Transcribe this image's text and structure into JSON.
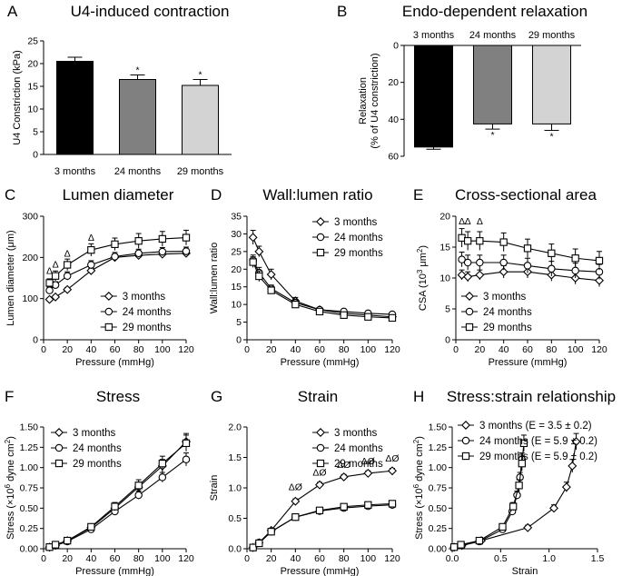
{
  "chart_data": [
    {
      "panel": "A",
      "type": "bar",
      "title": "U4-induced contraction",
      "categories": [
        "3 months",
        "24 months",
        "29 months"
      ],
      "values": [
        20.5,
        16.5,
        15.2
      ],
      "errors": [
        0.9,
        1.0,
        1.3
      ],
      "colors": [
        "#000000",
        "#808080",
        "#d3d3d3"
      ],
      "significance": [
        "",
        "*",
        "*"
      ],
      "ylabel": "U4 Constriction (kPa)",
      "ylim": [
        0,
        25
      ],
      "yticks": [
        0,
        5,
        10,
        15,
        20,
        25
      ]
    },
    {
      "panel": "B",
      "type": "bar",
      "title": "Endo-dependent relaxation",
      "categories": [
        "3 months",
        "24 months",
        "29 months"
      ],
      "values": [
        55,
        42.5,
        42.5
      ],
      "errors": [
        1.2,
        2.8,
        3.5
      ],
      "colors": [
        "#000000",
        "#808080",
        "#d3d3d3"
      ],
      "significance": [
        "",
        "*",
        "*"
      ],
      "ylabel": "Relaxation",
      "ylabel2": "(% of U4 constriction)",
      "ylim": [
        0,
        60
      ],
      "yticks": [
        0,
        20,
        40,
        60
      ]
    },
    {
      "panel": "C",
      "type": "line",
      "title": "Lumen diameter",
      "x": [
        5,
        10,
        20,
        40,
        60,
        80,
        100,
        120
      ],
      "series": [
        {
          "name": "3 months",
          "marker": "diamond",
          "values": [
            98,
            104,
            122,
            168,
            200,
            205,
            208,
            210
          ],
          "errors": [
            4,
            4,
            5,
            6,
            8,
            8,
            8,
            8
          ]
        },
        {
          "name": "24 months",
          "marker": "circle",
          "values": [
            120,
            133,
            155,
            182,
            202,
            210,
            214,
            215
          ],
          "errors": [
            8,
            8,
            10,
            10,
            10,
            10,
            10,
            10
          ]
        },
        {
          "name": "29 months",
          "marker": "square",
          "values": [
            138,
            155,
            182,
            218,
            232,
            240,
            245,
            248
          ],
          "errors": [
            10,
            12,
            14,
            15,
            15,
            18,
            18,
            18
          ]
        }
      ],
      "annotations": [
        {
          "x": 5,
          "y": 160,
          "text": "Δ"
        },
        {
          "x": 10,
          "y": 175,
          "text": "Δ"
        },
        {
          "x": 20,
          "y": 202,
          "text": "Δ"
        },
        {
          "x": 40,
          "y": 240,
          "text": "Δ"
        }
      ],
      "xlabel": "Pressure (mmHg)",
      "ylabel": "Lumen diameter (μm)",
      "xlim": [
        0,
        120
      ],
      "ylim": [
        0,
        300
      ],
      "xticks": [
        0,
        20,
        40,
        60,
        80,
        100,
        120
      ],
      "yticks": [
        0,
        100,
        200,
        300
      ],
      "legend": "bottom-right"
    },
    {
      "panel": "D",
      "type": "line",
      "title": "Wall:lumen ratio",
      "x": [
        5,
        10,
        20,
        40,
        60,
        80,
        100,
        120
      ],
      "series": [
        {
          "name": "3 months",
          "marker": "diamond",
          "values": [
            29,
            25,
            18.5,
            11,
            8.5,
            7.5,
            7,
            6.5
          ],
          "errors": [
            2,
            1.5,
            1.5,
            1,
            0.5,
            0.5,
            0.5,
            0.5
          ]
        },
        {
          "name": "24 months",
          "marker": "circle",
          "values": [
            22.5,
            19,
            14.5,
            10.5,
            8.5,
            8,
            7.5,
            7.2
          ],
          "errors": [
            1.5,
            1.5,
            1,
            1,
            0.5,
            0.5,
            0.5,
            0.5
          ]
        },
        {
          "name": "29 months",
          "marker": "square",
          "values": [
            22,
            18,
            14,
            10,
            8,
            7,
            6.5,
            6.2
          ],
          "errors": [
            1.5,
            1.5,
            1,
            1,
            0.5,
            0.5,
            0.5,
            0.5
          ]
        }
      ],
      "xlabel": "Pressure (mmHg)",
      "ylabel": "Wall:lumen ratio",
      "xlim": [
        0,
        120
      ],
      "ylim": [
        0,
        35
      ],
      "xticks": [
        0,
        20,
        40,
        60,
        80,
        100,
        120
      ],
      "yticks": [
        0,
        5,
        10,
        15,
        20,
        25,
        30,
        35
      ],
      "legend": "top-right"
    },
    {
      "panel": "E",
      "type": "line",
      "title": "Cross-sectional area",
      "x": [
        5,
        10,
        20,
        40,
        60,
        80,
        100,
        120
      ],
      "series": [
        {
          "name": "3 months",
          "marker": "diamond",
          "values": [
            10.5,
            10.2,
            10.5,
            11,
            11,
            10.5,
            10,
            9.6
          ],
          "errors": [
            0.8,
            0.8,
            0.8,
            1,
            1,
            1,
            1,
            1
          ]
        },
        {
          "name": "24 months",
          "marker": "circle",
          "values": [
            13,
            12.5,
            12.5,
            12.5,
            12,
            11.5,
            11.2,
            11
          ],
          "errors": [
            1.2,
            1.2,
            1.2,
            1.2,
            1.2,
            1.2,
            1.2,
            1.2
          ]
        },
        {
          "name": "29 months",
          "marker": "square",
          "values": [
            16.5,
            16,
            16,
            15.8,
            14.8,
            14,
            13.2,
            12.8
          ],
          "errors": [
            1.5,
            1.5,
            1.5,
            1.5,
            1.5,
            1.5,
            1.5,
            1.5
          ]
        }
      ],
      "annotations": [
        {
          "x": 5,
          "y": 18.7,
          "text": "Δ"
        },
        {
          "x": 10,
          "y": 18.7,
          "text": "Δ"
        },
        {
          "x": 20,
          "y": 18.7,
          "text": "Δ"
        }
      ],
      "xlabel": "Pressure (mmHg)",
      "ylabel": "CSA (10",
      "ylabel_sup": "3",
      "ylabel_unit": " μm",
      "ylabel_sup2": "2",
      "ylabel_end": ")",
      "xlim": [
        0,
        120
      ],
      "ylim": [
        0,
        20
      ],
      "xticks": [
        0,
        20,
        40,
        60,
        80,
        100,
        120
      ],
      "yticks": [
        0,
        5,
        10,
        15,
        20
      ],
      "legend": "bottom-left"
    },
    {
      "panel": "F",
      "type": "line",
      "title": "Stress",
      "x": [
        5,
        10,
        20,
        40,
        60,
        80,
        100,
        120
      ],
      "series": [
        {
          "name": "3 months",
          "marker": "diamond",
          "values": [
            0.02,
            0.04,
            0.1,
            0.26,
            0.5,
            0.76,
            1.02,
            1.32
          ],
          "errors": [
            0.01,
            0.01,
            0.02,
            0.03,
            0.04,
            0.06,
            0.08,
            0.1
          ]
        },
        {
          "name": "24 months",
          "marker": "circle",
          "values": [
            0.02,
            0.04,
            0.09,
            0.24,
            0.46,
            0.66,
            0.88,
            1.1
          ],
          "errors": [
            0.01,
            0.01,
            0.02,
            0.03,
            0.04,
            0.05,
            0.06,
            0.08
          ]
        },
        {
          "name": "29 months",
          "marker": "square",
          "values": [
            0.02,
            0.05,
            0.1,
            0.27,
            0.52,
            0.78,
            1.05,
            1.3
          ],
          "errors": [
            0.01,
            0.01,
            0.02,
            0.03,
            0.05,
            0.07,
            0.09,
            0.1
          ]
        }
      ],
      "xlabel": "Pressure (mmHg)",
      "ylabel": "Stress (×10",
      "ylabel_sup": "6",
      "ylabel_unit": " dyne cm",
      "ylabel_sup2": "2",
      "ylabel_end": ")",
      "xlim": [
        0,
        120
      ],
      "ylim": [
        0,
        1.5
      ],
      "xticks": [
        0,
        20,
        40,
        60,
        80,
        100,
        120
      ],
      "yticks": [
        0,
        0.25,
        0.5,
        0.75,
        1.0,
        1.25,
        1.5
      ],
      "ytick_labels": [
        "0.00",
        "0.25",
        "0.50",
        "0.75",
        "1.00",
        "1.25",
        "1.50"
      ],
      "legend": "top-left"
    },
    {
      "panel": "G",
      "type": "line",
      "title": "Strain",
      "x": [
        5,
        10,
        20,
        40,
        60,
        80,
        100,
        120
      ],
      "series": [
        {
          "name": "3 months",
          "marker": "diamond",
          "values": [
            0.02,
            0.1,
            0.3,
            0.78,
            1.05,
            1.18,
            1.24,
            1.28
          ],
          "errors": [
            0.01,
            0.02,
            0.03,
            0.04,
            0.04,
            0.04,
            0.04,
            0.04
          ]
        },
        {
          "name": "24 months",
          "marker": "circle",
          "values": [
            0.02,
            0.1,
            0.28,
            0.52,
            0.62,
            0.67,
            0.7,
            0.72
          ],
          "errors": [
            0.01,
            0.02,
            0.03,
            0.03,
            0.03,
            0.03,
            0.03,
            0.03
          ]
        },
        {
          "name": "29 months",
          "marker": "square",
          "values": [
            0.02,
            0.09,
            0.28,
            0.52,
            0.63,
            0.69,
            0.72,
            0.74
          ],
          "errors": [
            0.01,
            0.02,
            0.03,
            0.03,
            0.03,
            0.03,
            0.03,
            0.03
          ]
        }
      ],
      "annotations": [
        {
          "x": 40,
          "y": 0.96,
          "text": "ΔØ"
        },
        {
          "x": 60,
          "y": 1.2,
          "text": "ΔØ"
        },
        {
          "x": 80,
          "y": 1.33,
          "text": "ΔØ"
        },
        {
          "x": 100,
          "y": 1.39,
          "text": "ΔØ"
        },
        {
          "x": 120,
          "y": 1.43,
          "text": "ΔØ"
        }
      ],
      "xlabel": "Pressure (mmHg)",
      "ylabel": "Strain",
      "xlim": [
        0,
        120
      ],
      "ylim": [
        0,
        2.0
      ],
      "xticks": [
        0,
        20,
        40,
        60,
        80,
        100,
        120
      ],
      "yticks": [
        0,
        0.5,
        1.0,
        1.5,
        2.0
      ],
      "ytick_labels": [
        "0.0",
        "0.5",
        "1.0",
        "1.5",
        "2.0"
      ],
      "legend": "top-right"
    },
    {
      "panel": "H",
      "type": "scatter",
      "title": "Stress:strain relationship",
      "series": [
        {
          "name": "3 months (E = 3.5 ± 0.2)",
          "sig": "",
          "marker": "diamond",
          "x": [
            0.02,
            0.1,
            0.3,
            0.78,
            1.05,
            1.18,
            1.24,
            1.28
          ],
          "values": [
            0.02,
            0.04,
            0.1,
            0.26,
            0.5,
            0.76,
            1.02,
            1.32
          ],
          "errors": [
            0.01,
            0.01,
            0.02,
            0.03,
            0.04,
            0.06,
            0.08,
            0.1
          ]
        },
        {
          "name": "24 months (E = 5.9 ± 0.2)",
          "sig": "*",
          "marker": "circle",
          "x": [
            0.02,
            0.1,
            0.28,
            0.52,
            0.62,
            0.67,
            0.7,
            0.72
          ],
          "values": [
            0.02,
            0.04,
            0.09,
            0.24,
            0.46,
            0.66,
            0.88,
            1.1
          ],
          "errors": [
            0.01,
            0.01,
            0.02,
            0.03,
            0.04,
            0.05,
            0.06,
            0.08
          ]
        },
        {
          "name": "29 months (E = 5.9 ± 0.2)",
          "sig": "*",
          "marker": "square",
          "x": [
            0.02,
            0.09,
            0.28,
            0.52,
            0.63,
            0.69,
            0.72,
            0.74
          ],
          "values": [
            0.02,
            0.05,
            0.1,
            0.27,
            0.52,
            0.78,
            1.05,
            1.3
          ],
          "errors": [
            0.01,
            0.01,
            0.02,
            0.03,
            0.05,
            0.07,
            0.09,
            0.1
          ]
        }
      ],
      "xlabel": "Strain",
      "ylabel": "Stress (×10",
      "ylabel_sup": "6",
      "ylabel_unit": " dyne cm",
      "ylabel_sup2": "2",
      "ylabel_end": ")",
      "xlim": [
        0,
        1.5
      ],
      "ylim": [
        0,
        1.5
      ],
      "xticks": [
        0,
        0.5,
        1.0,
        1.5
      ],
      "xtick_labels": [
        "0.0",
        "0.5",
        "1.0",
        "1.5"
      ],
      "yticks": [
        0,
        0.25,
        0.5,
        0.75,
        1.0,
        1.25,
        1.5
      ],
      "ytick_labels": [
        "0.00",
        "0.25",
        "0.50",
        "0.75",
        "1.00",
        "1.25",
        "1.50"
      ],
      "legend": "top-left"
    }
  ]
}
